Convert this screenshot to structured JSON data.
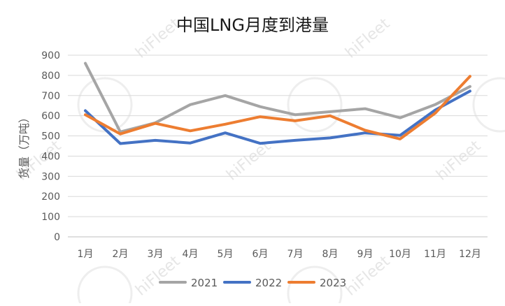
{
  "chart_data": {
    "type": "line",
    "title": "中国LNG月度到港量",
    "xlabel": "",
    "ylabel": "货量（万吨）",
    "categories": [
      "1月",
      "2月",
      "3月",
      "4月",
      "5月",
      "6月",
      "7月",
      "8月",
      "9月",
      "10月",
      "11月",
      "12月"
    ],
    "ylim": [
      0,
      900
    ],
    "yticks": [
      0,
      100,
      200,
      300,
      400,
      500,
      600,
      700,
      800,
      900
    ],
    "grid": true,
    "legend_position": "bottom",
    "series": [
      {
        "name": "2021",
        "color": "#A5A5A5",
        "values": [
          860,
          520,
          565,
          655,
          700,
          645,
          605,
          620,
          635,
          590,
          655,
          745
        ]
      },
      {
        "name": "2022",
        "color": "#4472C4",
        "values": [
          625,
          462,
          478,
          465,
          515,
          463,
          478,
          490,
          515,
          503,
          628,
          722
        ]
      },
      {
        "name": "2023",
        "color": "#ED7D31",
        "values": [
          605,
          510,
          562,
          525,
          558,
          595,
          575,
          600,
          528,
          485,
          612,
          795
        ]
      }
    ]
  },
  "watermark": {
    "text": "hiFleet"
  }
}
